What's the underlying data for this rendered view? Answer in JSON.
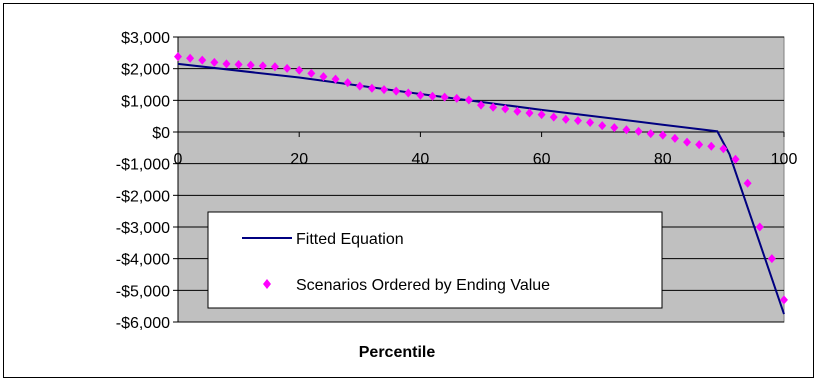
{
  "chart_data": {
    "type": "line",
    "title": "",
    "xlabel": "Percentile",
    "ylabel": "",
    "xlim": [
      0,
      100
    ],
    "ylim": [
      -6000,
      3000
    ],
    "x_ticks": [
      0,
      20,
      40,
      60,
      80,
      100
    ],
    "x_tick_labels": [
      "0",
      "20",
      "40",
      "60",
      "80",
      "100"
    ],
    "y_ticks": [
      3000,
      2000,
      1000,
      0,
      -1000,
      -2000,
      -3000,
      -4000,
      -5000,
      -6000
    ],
    "y_tick_labels": [
      "$3,000",
      "$2,000",
      "$1,000",
      "$0",
      "-$1,000",
      "-$2,000",
      "-$3,000",
      "-$4,000",
      "-$5,000",
      "-$6,000"
    ],
    "grid": true,
    "plot_background": "#c0c0c0",
    "legend": {
      "placement": "lower-left"
    },
    "series": [
      {
        "name": "Fitted Equation",
        "kind": "line",
        "color": "#000080",
        "x": [
          0,
          20,
          40,
          60,
          80,
          89,
          91,
          100
        ],
        "y": [
          2150,
          1720,
          1200,
          700,
          230,
          20,
          -700,
          -5750
        ]
      },
      {
        "name": "Scenarios Ordered by Ending Value",
        "kind": "scatter",
        "marker": "diamond",
        "color": "#ff00ff",
        "x": [
          0,
          2,
          4,
          6,
          8,
          10,
          12,
          14,
          16,
          18,
          20,
          22,
          24,
          26,
          28,
          30,
          32,
          34,
          36,
          38,
          40,
          42,
          44,
          46,
          48,
          50,
          52,
          54,
          56,
          58,
          60,
          62,
          64,
          66,
          68,
          70,
          72,
          74,
          76,
          78,
          80,
          82,
          84,
          86,
          88,
          90,
          92,
          94,
          96,
          98,
          100
        ],
        "y": [
          2380,
          2330,
          2270,
          2200,
          2150,
          2130,
          2110,
          2090,
          2060,
          2010,
          1950,
          1850,
          1750,
          1670,
          1560,
          1450,
          1380,
          1340,
          1290,
          1230,
          1160,
          1130,
          1100,
          1060,
          1010,
          850,
          780,
          730,
          650,
          600,
          550,
          470,
          400,
          360,
          300,
          200,
          140,
          70,
          20,
          -50,
          -100,
          -200,
          -320,
          -400,
          -450,
          -530,
          -860,
          -1620,
          -3000,
          -4000,
          -5300
        ]
      }
    ]
  }
}
